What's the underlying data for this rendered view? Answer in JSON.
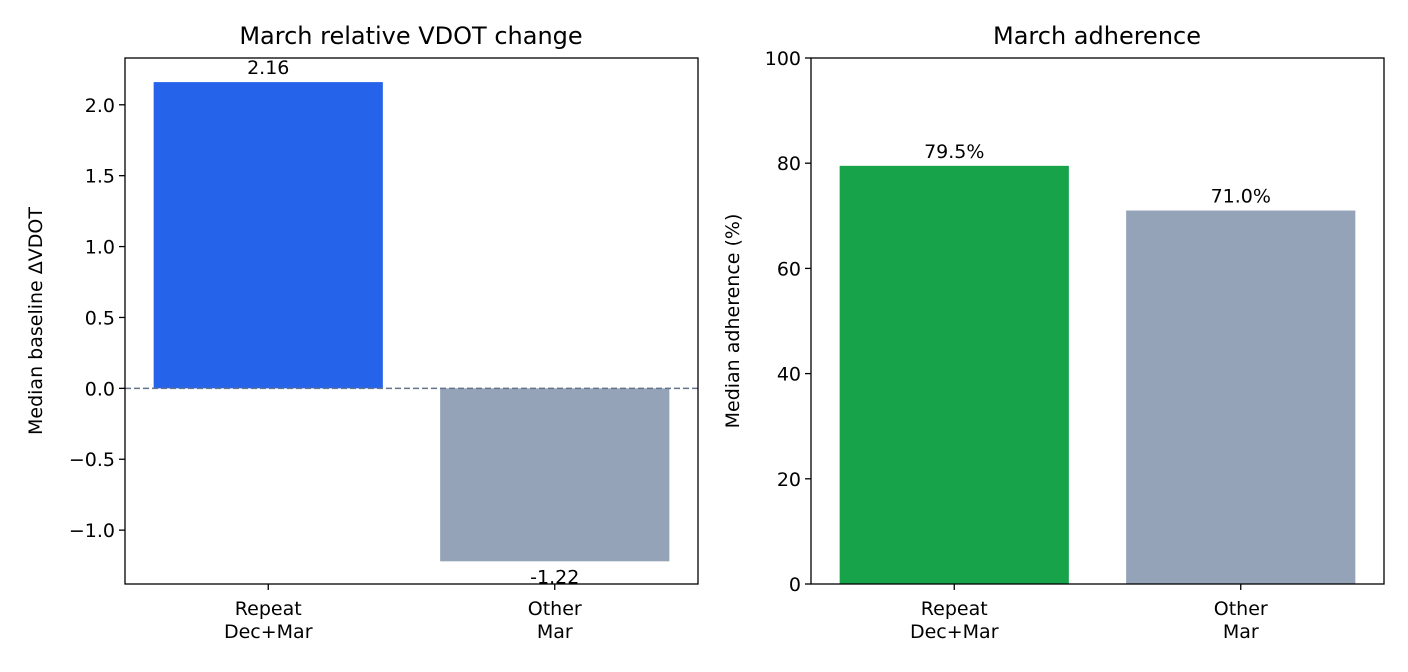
{
  "chart_data": [
    {
      "type": "bar",
      "title": "March relative VDOT change",
      "xlabel": "",
      "ylabel": "Median baseline ΔVDOT",
      "categories": [
        [
          "Repeat",
          "Dec+Mar"
        ],
        [
          "Other",
          "Mar"
        ]
      ],
      "values": [
        2.16,
        -1.22
      ],
      "data_labels": [
        "2.16",
        "-1.22"
      ],
      "colors": [
        "#2563eb",
        "#94a3b8"
      ],
      "ylim": [
        -1.38,
        2.33
      ],
      "yticks": [
        {
          "value": -1.0,
          "label": "−1.0"
        },
        {
          "value": -0.5,
          "label": "−0.5"
        },
        {
          "value": 0.0,
          "label": "0.0"
        },
        {
          "value": 0.5,
          "label": "0.5"
        },
        {
          "value": 1.0,
          "label": "1.0"
        },
        {
          "value": 1.5,
          "label": "1.5"
        },
        {
          "value": 2.0,
          "label": "2.0"
        }
      ],
      "reference_line": {
        "value": 0,
        "style": "dashed",
        "color": "#64748b"
      },
      "grid": false
    },
    {
      "type": "bar",
      "title": "March adherence",
      "xlabel": "",
      "ylabel": "Median adherence (%)",
      "categories": [
        [
          "Repeat",
          "Dec+Mar"
        ],
        [
          "Other",
          "Mar"
        ]
      ],
      "values": [
        79.5,
        71.0
      ],
      "data_labels": [
        "79.5%",
        "71.0%"
      ],
      "colors": [
        "#16a34a",
        "#94a3b8"
      ],
      "ylim": [
        0,
        100
      ],
      "yticks": [
        {
          "value": 0,
          "label": "0"
        },
        {
          "value": 20,
          "label": "20"
        },
        {
          "value": 40,
          "label": "40"
        },
        {
          "value": 60,
          "label": "60"
        },
        {
          "value": 80,
          "label": "80"
        },
        {
          "value": 100,
          "label": "100"
        }
      ],
      "grid": false
    }
  ]
}
